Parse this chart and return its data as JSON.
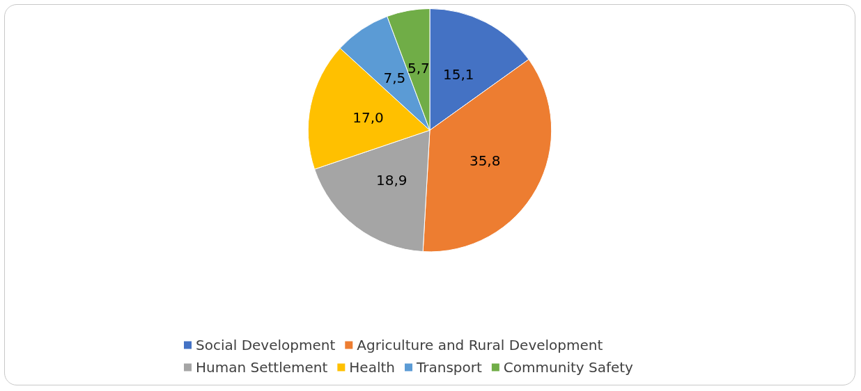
{
  "chart_data": {
    "type": "pie",
    "categories": [
      "Social Development",
      "Agriculture and Rural Development",
      "Human Settlement",
      "Health",
      "Transport",
      "Community Safety"
    ],
    "values": [
      15.1,
      35.8,
      18.9,
      17.0,
      7.5,
      5.7
    ],
    "colors": [
      "#4472c4",
      "#ed7d31",
      "#a5a5a5",
      "#ffc000",
      "#5b9bd5",
      "#70ad47"
    ],
    "value_labels": [
      "15,1",
      "35,8",
      "18,9",
      "17,0",
      "7,5",
      "5,7"
    ],
    "legend": "bottom"
  }
}
